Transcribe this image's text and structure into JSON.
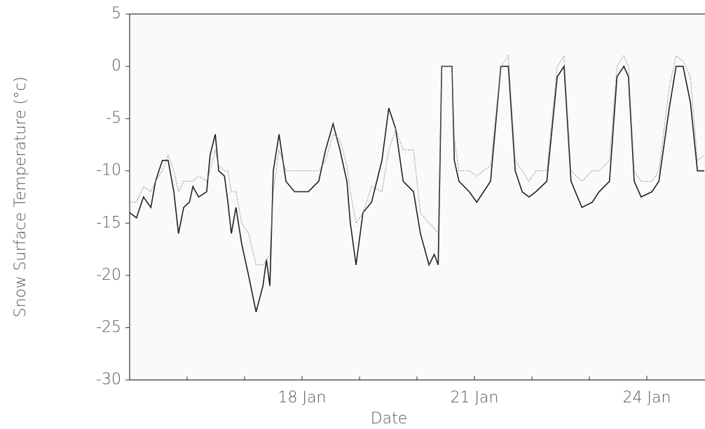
{
  "chart_data": {
    "type": "line",
    "ylabel": "Snow Surface Temperature (°c)",
    "xlabel": "Date",
    "xlim": [
      15,
      25
    ],
    "xticks": [
      {
        "value": 18,
        "label": "18 Jan"
      },
      {
        "value": 21,
        "label": "21 Jan"
      },
      {
        "value": 24,
        "label": "24 Jan"
      }
    ],
    "xminorticks": [
      16,
      17,
      19,
      20,
      22,
      23
    ],
    "ylim": [
      -30,
      5
    ],
    "yticks": [
      -30,
      -25,
      -20,
      -15,
      -10,
      -5,
      0,
      5
    ],
    "grid": false,
    "x": [
      15.0,
      15.12,
      15.24,
      15.37,
      15.45,
      15.57,
      15.67,
      15.77,
      15.85,
      15.94,
      16.04,
      16.1,
      16.2,
      16.34,
      16.4,
      16.49,
      16.55,
      16.65,
      16.71,
      16.77,
      16.85,
      16.95,
      17.07,
      17.2,
      17.32,
      17.38,
      17.44,
      17.5,
      17.6,
      17.72,
      17.87,
      18.11,
      18.29,
      18.41,
      18.54,
      18.66,
      18.78,
      18.84,
      18.94,
      19.06,
      19.21,
      19.39,
      19.51,
      19.63,
      19.76,
      19.94,
      20.06,
      20.21,
      20.3,
      20.37,
      20.43,
      20.61,
      20.65,
      20.73,
      20.91,
      21.04,
      21.16,
      21.28,
      21.46,
      21.59,
      21.71,
      21.83,
      21.95,
      22.07,
      22.26,
      22.44,
      22.56,
      22.68,
      22.87,
      23.05,
      23.17,
      23.35,
      23.48,
      23.6,
      23.68,
      23.78,
      23.9,
      24.09,
      24.21,
      24.39,
      24.51,
      24.63,
      24.76,
      24.88,
      25.0
    ],
    "series": [
      {
        "color": "#222222",
        "style": "solid",
        "values": [
          -14,
          -14.5,
          -12.5,
          -13.5,
          -11,
          -9,
          -9,
          -12,
          -16,
          -13.5,
          -13,
          -11.5,
          -12.5,
          -12,
          -8.5,
          -6.5,
          -10,
          -10.5,
          -13,
          -16,
          -13.5,
          -17,
          -20,
          -23.5,
          -21,
          -18.5,
          -21,
          -10,
          -6.5,
          -11,
          -12,
          -12,
          -11,
          -8,
          -5.5,
          -8,
          -11,
          -15,
          -19,
          -14,
          -13,
          -9,
          -4,
          -6,
          -11,
          -12,
          -16,
          -19,
          -18,
          -19,
          0,
          0,
          -9,
          -11,
          -12,
          -13,
          -12,
          -11,
          0,
          0,
          -10,
          -12,
          -12.5,
          -12,
          -11,
          -1,
          0,
          -11,
          -13.5,
          -13,
          -12,
          -11,
          -1,
          0,
          -1,
          -11,
          -12.5,
          -12,
          -11,
          -4,
          0,
          0,
          -3.5,
          -10,
          -10
        ]
      },
      {
        "color": "#8a8a8a",
        "style": "dotted",
        "values": [
          -13,
          -13,
          -11.5,
          -12,
          -11,
          -10,
          -8.5,
          -10,
          -12,
          -11,
          -11,
          -11,
          -10.5,
          -11,
          -10,
          -8,
          -9.5,
          -10,
          -10,
          -12,
          -12,
          -15,
          -16,
          -19,
          -19,
          -18.5,
          -18,
          -12,
          -8,
          -10,
          -10,
          -10,
          -10,
          -9,
          -6.5,
          -7,
          -9.5,
          -12,
          -15,
          -14,
          -11.5,
          -12,
          -8,
          -6,
          -8,
          -8,
          -14,
          -15,
          -15.5,
          -16,
          0,
          0,
          -7,
          -10,
          -10,
          -10.5,
          -10,
          -9.5,
          0,
          1,
          -9,
          -10,
          -11,
          -10,
          -10,
          0,
          1,
          -10,
          -11,
          -10,
          -10,
          -9,
          0,
          1,
          0,
          -10,
          -11,
          -11,
          -10,
          -2,
          1,
          0.5,
          -1,
          -9,
          -8.5
        ]
      }
    ]
  }
}
